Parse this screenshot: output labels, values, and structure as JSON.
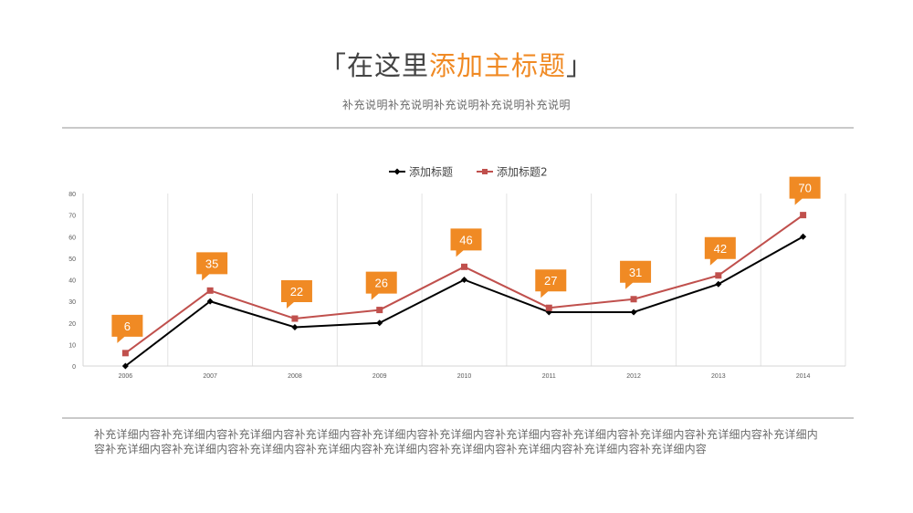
{
  "header": {
    "bracket_open": "「",
    "title_dark": "在这里",
    "title_accent": "添加主标题",
    "bracket_close": "」",
    "subtitle": "补充说明补充说明补充说明补充说明补充说明"
  },
  "colors": {
    "accent": "#f08a24",
    "series1": "#000000",
    "series2": "#c0504d",
    "text": "#444444",
    "rule": "#c9c9c9"
  },
  "chart_data": {
    "type": "line",
    "title": "",
    "xlabel": "",
    "ylabel": "",
    "ylim": [
      0,
      80
    ],
    "yticks": [
      0,
      10,
      20,
      30,
      40,
      50,
      60,
      70,
      80
    ],
    "categories": [
      "2006",
      "2007",
      "2008",
      "2009",
      "2010",
      "2011",
      "2012",
      "2013",
      "2014"
    ],
    "series": [
      {
        "name": "添加标题",
        "values": [
          0,
          30,
          18,
          20,
          40,
          25,
          25,
          38,
          60
        ],
        "color": "#000000",
        "marker": "diamond"
      },
      {
        "name": "添加标题2",
        "values": [
          6,
          35,
          22,
          26,
          46,
          27,
          31,
          42,
          70
        ],
        "color": "#c0504d",
        "marker": "square",
        "callout_labels": true
      }
    ],
    "legend": "top-center",
    "grid": "vertical"
  },
  "description": "补充详细内容补充详细内容补充详细内容补充详细内容补充详细内容补充详细内容补充详细内容补充详细内容补充详细内容补充详细内容补充详细内容补充详细内容补充详细内容补充详细内容补充详细内容补充详细内容补充详细内容补充详细内容补充详细内容补充详细内容"
}
